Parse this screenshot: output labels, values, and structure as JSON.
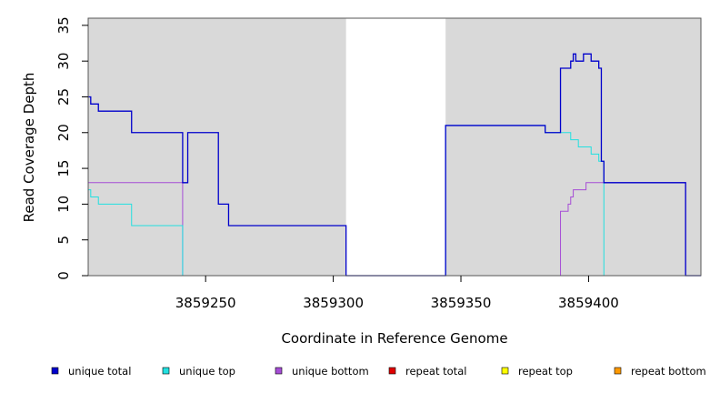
{
  "chart_data": {
    "type": "line",
    "line_style": "step",
    "xlabel": "Coordinate in Reference Genome",
    "ylabel": "Read Coverage Depth",
    "xlim": [
      3859204,
      3859444
    ],
    "ylim": [
      0,
      36
    ],
    "x_ticks": [
      3859250,
      3859300,
      3859350,
      3859400
    ],
    "y_ticks": [
      0,
      5,
      10,
      15,
      20,
      25,
      30,
      35
    ],
    "grid": false,
    "legend_position": "bottom",
    "background": "#d9d9d9",
    "shaded_regions": [
      [
        3859204,
        3859305
      ],
      [
        3859344,
        3859444
      ]
    ],
    "series": [
      {
        "name": "unique total",
        "color": "#0000cc",
        "x": [
          3859204,
          3859205,
          3859208,
          3859221,
          3859241,
          3859243,
          3859255,
          3859259,
          3859305,
          3859344,
          3859383,
          3859389,
          3859393,
          3859394,
          3859395,
          3859398,
          3859401,
          3859404,
          3859405,
          3859406,
          3859438,
          3859444
        ],
        "y": [
          25,
          24,
          23,
          20,
          13,
          20,
          10,
          7,
          0,
          21,
          20,
          29,
          30,
          31,
          30,
          31,
          30,
          29,
          16,
          13,
          0,
          0
        ]
      },
      {
        "name": "unique top",
        "color": "#22e0e0",
        "x": [
          3859204,
          3859205,
          3859208,
          3859221,
          3859241,
          3859305,
          3859344,
          3859383,
          3859393,
          3859396,
          3859401,
          3859404,
          3859406,
          3859444
        ],
        "y": [
          12,
          11,
          10,
          7,
          0,
          0,
          21,
          20,
          19,
          18,
          17,
          16,
          0,
          0
        ]
      },
      {
        "name": "unique bottom",
        "color": "#a64dd6",
        "x": [
          3859204,
          3859241,
          3859305,
          3859344,
          3859389,
          3859392,
          3859393,
          3859394,
          3859395,
          3859399,
          3859402,
          3859405,
          3859406,
          3859438,
          3859444
        ],
        "y": [
          13,
          0,
          0,
          0,
          9,
          10,
          11,
          12,
          12,
          13,
          13,
          13,
          13,
          0,
          0
        ]
      },
      {
        "name": "repeat total",
        "color": "#e00000",
        "x": [
          3859204,
          3859444
        ],
        "y": [
          0,
          0
        ]
      },
      {
        "name": "repeat top",
        "color": "#ffff00",
        "x": [
          3859204,
          3859444
        ],
        "y": [
          0,
          0
        ]
      },
      {
        "name": "repeat bottom",
        "color": "#ff9900",
        "x": [
          3859204,
          3859444
        ],
        "y": [
          0,
          0
        ]
      }
    ]
  }
}
